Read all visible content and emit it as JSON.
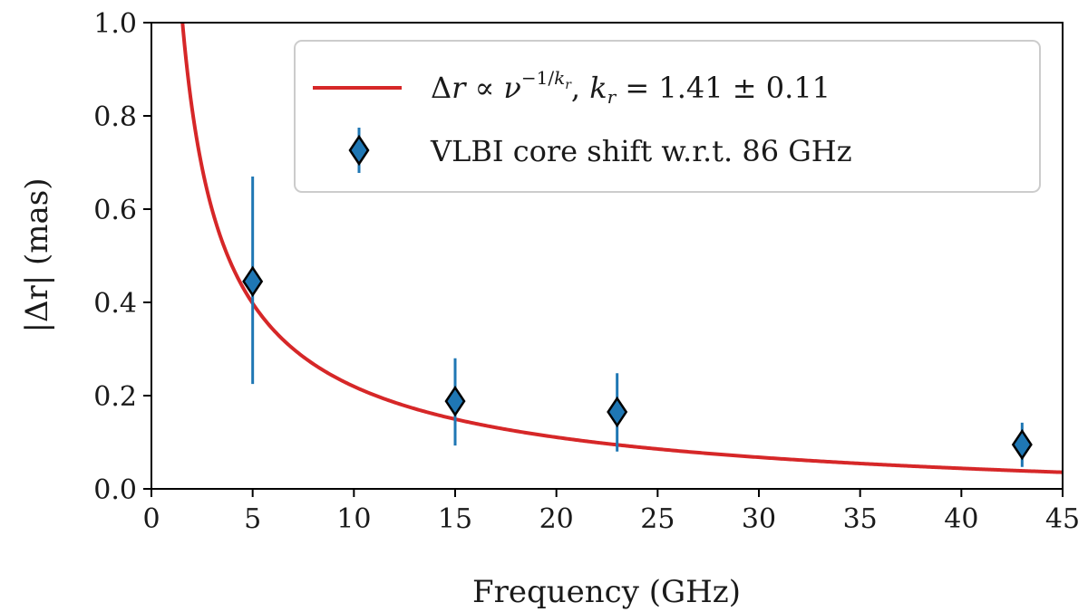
{
  "chart_data": {
    "type": "scatter",
    "title": "",
    "xlabel": "Frequency (GHz)",
    "ylabel": "|Δr| (mas)",
    "xlim": [
      0,
      45
    ],
    "ylim": [
      0.0,
      1.0
    ],
    "x_ticks": [
      0,
      5,
      10,
      15,
      20,
      25,
      30,
      35,
      40,
      45
    ],
    "x_tick_labels": [
      "0",
      "5",
      "10",
      "15",
      "20",
      "25",
      "30",
      "35",
      "40",
      "45"
    ],
    "y_ticks": [
      0.0,
      0.2,
      0.4,
      0.6,
      0.8,
      1.0
    ],
    "y_tick_labels": [
      "0.0",
      "0.2",
      "0.4",
      "0.6",
      "0.8",
      "1.0"
    ],
    "grid": false,
    "legend_position": "top-right",
    "series": [
      {
        "name": "VLBI core shift w.r.t. 86 GHz",
        "kind": "errorbar",
        "marker": "diamond",
        "color": "#1f77b4",
        "edge_color": "#000000",
        "x": [
          5,
          15,
          23,
          43
        ],
        "y": [
          0.445,
          0.188,
          0.165,
          0.095
        ],
        "yerr_low": [
          0.22,
          0.095,
          0.085,
          0.048
        ],
        "yerr_high": [
          0.225,
          0.092,
          0.083,
          0.047
        ]
      },
      {
        "name": "Δr ∝ ν^(−1/k_r), k_r = 1.41 ± 0.11",
        "kind": "fit-curve",
        "color": "#d62728",
        "model": "A * (nu^(-1/k_r) - 86^(-1/k_r))",
        "k_r": 1.41,
        "k_r_err": 0.11,
        "reference_frequency_GHz": 86,
        "A": 1.437
      }
    ],
    "legend": {
      "fit_text": {
        "part1": "Δ",
        "part2": "r",
        "part3": " ∝ ",
        "part4": "ν",
        "part5": "−1/",
        "part6": "k",
        "part7": "r",
        "part8": ",  ",
        "part9": "k",
        "part10": "r",
        "part11": " = 1.41 ± 0.11"
      },
      "data_text": "VLBI core shift w.r.t. 86 GHz"
    }
  }
}
